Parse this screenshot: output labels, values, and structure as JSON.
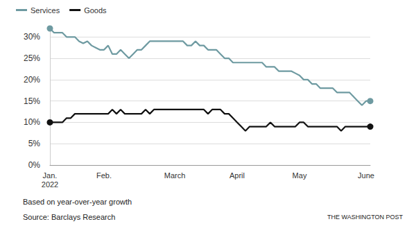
{
  "chart_data": {
    "type": "line",
    "note": "Based on year-over-year growth",
    "source": "Source: Barclays Research",
    "credit": "THE WASHINGTON POST",
    "categories": [
      "Jan.\n2022",
      null,
      null,
      null,
      null,
      null,
      null,
      null,
      null,
      null,
      null,
      null,
      null,
      "Feb.",
      null,
      null,
      null,
      null,
      null,
      null,
      null,
      null,
      null,
      null,
      null,
      null,
      null,
      null,
      null,
      null,
      "March",
      null,
      null,
      null,
      null,
      null,
      null,
      null,
      null,
      null,
      null,
      null,
      null,
      null,
      null,
      "April",
      null,
      null,
      null,
      null,
      null,
      null,
      null,
      null,
      null,
      null,
      null,
      null,
      null,
      null,
      "May",
      null,
      null,
      null,
      null,
      null,
      null,
      null,
      null,
      null,
      null,
      null,
      null,
      null,
      null,
      null,
      "June",
      null
    ],
    "series": [
      {
        "name": "Services",
        "color": "#6e9aa1",
        "marker": "endpoints",
        "values": [
          32,
          31,
          31,
          31,
          30,
          30,
          30,
          29,
          28.5,
          29,
          28,
          27.5,
          27,
          27,
          28,
          26,
          26,
          27,
          26,
          25,
          26,
          27,
          27,
          28,
          29,
          29,
          29,
          29,
          29,
          29,
          29,
          29,
          29,
          28,
          28,
          29,
          28,
          28,
          27,
          27,
          27,
          26,
          25,
          25,
          24,
          24,
          24,
          24,
          24,
          24,
          24,
          24,
          23,
          23,
          23,
          22,
          22,
          22,
          22,
          21.5,
          21,
          20,
          20,
          19,
          19,
          18,
          18,
          18,
          18,
          17,
          17,
          17,
          17,
          16,
          15,
          14,
          15,
          15
        ]
      },
      {
        "name": "Goods",
        "color": "#111111",
        "marker": "endpoints",
        "values": [
          10,
          10,
          10,
          10,
          11,
          11,
          12,
          12,
          12,
          12,
          12,
          12,
          12,
          12,
          12,
          13,
          12,
          13,
          12,
          12,
          12,
          12,
          12,
          13,
          12,
          13,
          13,
          13,
          13,
          13,
          13,
          13,
          13,
          13,
          13,
          13,
          13,
          13,
          12,
          13,
          13,
          13,
          12,
          12,
          11,
          10,
          9,
          8,
          9,
          9,
          9,
          9,
          9,
          10,
          9,
          9,
          9,
          9,
          9,
          9,
          10,
          10,
          9,
          9,
          9,
          9,
          9,
          9,
          9,
          9,
          8,
          9,
          9,
          9,
          9,
          9,
          9,
          9
        ]
      }
    ],
    "ylim": [
      0,
      32
    ],
    "yticks": [
      {
        "value": 0,
        "label": "0%"
      },
      {
        "value": 5,
        "label": "5%"
      },
      {
        "value": 10,
        "label": "10%"
      },
      {
        "value": 15,
        "label": "15%"
      },
      {
        "value": 20,
        "label": "20%"
      },
      {
        "value": 25,
        "label": "25%"
      },
      {
        "value": 30,
        "label": "30%"
      }
    ],
    "grid": true,
    "legend": "top-left"
  }
}
